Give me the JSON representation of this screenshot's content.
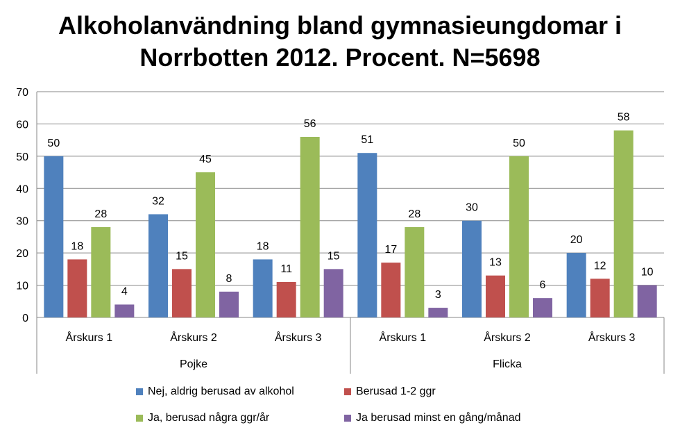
{
  "chart_data": {
    "type": "bar",
    "title": "Alkoholanvändning bland gymnasieungdomar i Norrbotten 2012. Procent. N=5698",
    "categories": [
      "Årskurs 1",
      "Årskurs 2",
      "Årskurs 3",
      "Årskurs 1",
      "Årskurs 2",
      "Årskurs 3"
    ],
    "groups": [
      "Pojke",
      "Flicka"
    ],
    "series": [
      {
        "name": "Nej, aldrig berusad av alkohol",
        "color": "#4F81BD",
        "values": [
          50,
          32,
          18,
          51,
          30,
          20
        ]
      },
      {
        "name": "Berusad 1-2 ggr",
        "color": "#C0504D",
        "values": [
          18,
          15,
          11,
          17,
          13,
          12
        ]
      },
      {
        "name": "Ja, berusad några ggr/år",
        "color": "#9BBB59",
        "values": [
          28,
          45,
          56,
          28,
          50,
          58
        ]
      },
      {
        "name": "Ja berusad minst en gång/månad",
        "color": "#8064A2",
        "values": [
          4,
          8,
          15,
          3,
          6,
          10
        ]
      }
    ],
    "ylim": [
      0,
      70
    ],
    "yticks": [
      0,
      10,
      20,
      30,
      40,
      50,
      60,
      70
    ],
    "grid": true,
    "legend_position": "bottom"
  }
}
